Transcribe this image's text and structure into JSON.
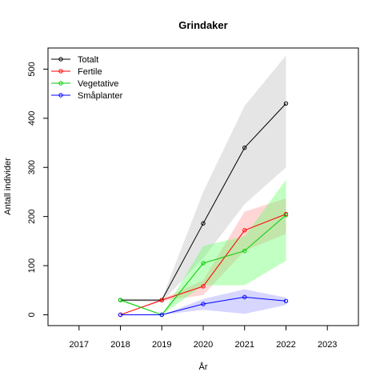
{
  "chart_data": {
    "type": "line",
    "title": "Grindaker",
    "xlabel": "År",
    "ylabel": "Antall individer",
    "xlim": [
      2016.25,
      2023.75
    ],
    "ylim": [
      -22,
      543
    ],
    "x_ticks": [
      2017,
      2018,
      2019,
      2020,
      2021,
      2022,
      2023
    ],
    "y_ticks": [
      0,
      100,
      200,
      300,
      400,
      500
    ],
    "legend_position": "top-left",
    "x": [
      2018,
      2019,
      2020,
      2021,
      2022
    ],
    "series": [
      {
        "name": "Totalt",
        "color": "#000000",
        "band_color": "#bebebe",
        "values": [
          30,
          30,
          186,
          340,
          430
        ],
        "band_lower": [
          28,
          26,
          115,
          225,
          300
        ],
        "band_upper": [
          33,
          32,
          250,
          425,
          528
        ]
      },
      {
        "name": "Fertile",
        "color": "#ff0000",
        "band_color": "#ff9999",
        "values": [
          0,
          30,
          58,
          172,
          205
        ],
        "band_lower": [
          0,
          28,
          40,
          130,
          165
        ],
        "band_upper": [
          0,
          32,
          70,
          210,
          237
        ]
      },
      {
        "name": "Vegetative",
        "color": "#00cc00",
        "band_color": "#66ff66",
        "values": [
          30,
          0,
          105,
          130,
          203
        ],
        "band_lower": [
          28,
          0,
          60,
          60,
          110
        ],
        "band_upper": [
          33,
          0,
          140,
          160,
          275
        ]
      },
      {
        "name": "Småplanter",
        "color": "#0000ff",
        "band_color": "#9999ff",
        "values": [
          0,
          0,
          22,
          36,
          28
        ],
        "band_lower": [
          0,
          0,
          10,
          2,
          20
        ],
        "band_upper": [
          0,
          0,
          32,
          52,
          35
        ]
      }
    ]
  }
}
